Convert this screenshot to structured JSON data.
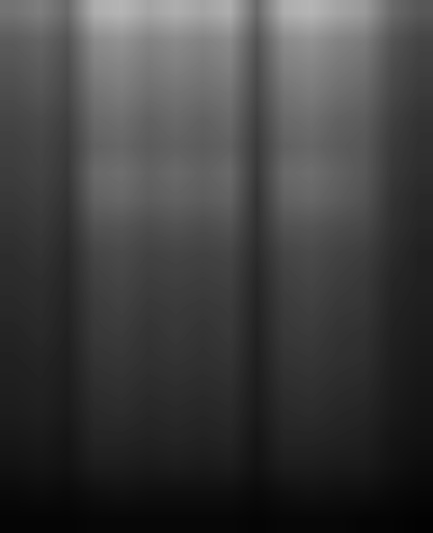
{
  "chart_data": {
    "type": "heatmap",
    "tick_labels": false,
    "color_range": [
      0,
      1
    ],
    "cells": [
      [
        0.45,
        0.49,
        0.41,
        0.68,
        0.71,
        0.64,
        0.68,
        0.64,
        0.68,
        0.41,
        0.68,
        0.71,
        0.64,
        0.6,
        0.41,
        0.34
      ],
      [
        0.36,
        0.39,
        0.33,
        0.54,
        0.57,
        0.51,
        0.54,
        0.51,
        0.54,
        0.33,
        0.54,
        0.57,
        0.51,
        0.48,
        0.33,
        0.27
      ],
      [
        0.33,
        0.36,
        0.3,
        0.5,
        0.52,
        0.47,
        0.5,
        0.47,
        0.5,
        0.3,
        0.5,
        0.52,
        0.47,
        0.44,
        0.3,
        0.25
      ],
      [
        0.3,
        0.33,
        0.28,
        0.45,
        0.48,
        0.43,
        0.45,
        0.43,
        0.45,
        0.28,
        0.45,
        0.48,
        0.43,
        0.4,
        0.28,
        0.23
      ],
      [
        0.27,
        0.29,
        0.25,
        0.41,
        0.43,
        0.38,
        0.41,
        0.38,
        0.41,
        0.25,
        0.41,
        0.43,
        0.38,
        0.36,
        0.25,
        0.2
      ],
      [
        0.25,
        0.27,
        0.23,
        0.38,
        0.4,
        0.36,
        0.38,
        0.36,
        0.38,
        0.23,
        0.38,
        0.4,
        0.36,
        0.34,
        0.23,
        0.19
      ],
      [
        0.24,
        0.26,
        0.22,
        0.41,
        0.43,
        0.38,
        0.41,
        0.38,
        0.41,
        0.22,
        0.41,
        0.43,
        0.38,
        0.34,
        0.22,
        0.18
      ],
      [
        0.22,
        0.24,
        0.2,
        0.38,
        0.4,
        0.36,
        0.38,
        0.36,
        0.38,
        0.2,
        0.38,
        0.4,
        0.36,
        0.32,
        0.2,
        0.16
      ],
      [
        0.2,
        0.22,
        0.18,
        0.32,
        0.33,
        0.3,
        0.32,
        0.3,
        0.32,
        0.19,
        0.32,
        0.33,
        0.3,
        0.28,
        0.19,
        0.15
      ],
      [
        0.18,
        0.2,
        0.16,
        0.27,
        0.29,
        0.26,
        0.27,
        0.26,
        0.27,
        0.17,
        0.27,
        0.29,
        0.26,
        0.24,
        0.17,
        0.13
      ],
      [
        0.17,
        0.18,
        0.15,
        0.25,
        0.27,
        0.24,
        0.25,
        0.24,
        0.25,
        0.15,
        0.25,
        0.27,
        0.24,
        0.22,
        0.15,
        0.13
      ],
      [
        0.16,
        0.17,
        0.14,
        0.23,
        0.25,
        0.22,
        0.23,
        0.22,
        0.23,
        0.14,
        0.23,
        0.25,
        0.22,
        0.21,
        0.14,
        0.12
      ],
      [
        0.14,
        0.16,
        0.13,
        0.22,
        0.23,
        0.2,
        0.22,
        0.2,
        0.22,
        0.13,
        0.22,
        0.23,
        0.2,
        0.19,
        0.13,
        0.11
      ],
      [
        0.13,
        0.14,
        0.12,
        0.2,
        0.21,
        0.19,
        0.2,
        0.19,
        0.2,
        0.12,
        0.2,
        0.21,
        0.19,
        0.18,
        0.12,
        0.1
      ],
      [
        0.12,
        0.13,
        0.11,
        0.18,
        0.19,
        0.17,
        0.18,
        0.17,
        0.18,
        0.11,
        0.18,
        0.19,
        0.17,
        0.16,
        0.11,
        0.09
      ],
      [
        0.11,
        0.12,
        0.1,
        0.16,
        0.17,
        0.15,
        0.16,
        0.15,
        0.16,
        0.1,
        0.16,
        0.17,
        0.15,
        0.14,
        0.1,
        0.08
      ],
      [
        0.09,
        0.1,
        0.08,
        0.14,
        0.14,
        0.13,
        0.14,
        0.13,
        0.14,
        0.08,
        0.14,
        0.14,
        0.13,
        0.12,
        0.08,
        0.07
      ],
      [
        0.07,
        0.08,
        0.07,
        0.11,
        0.11,
        0.1,
        0.11,
        0.1,
        0.11,
        0.07,
        0.11,
        0.11,
        0.1,
        0.1,
        0.07,
        0.05
      ],
      [
        0.04,
        0.05,
        0.04,
        0.06,
        0.07,
        0.06,
        0.06,
        0.06,
        0.06,
        0.04,
        0.06,
        0.07,
        0.06,
        0.06,
        0.04,
        0.03
      ],
      [
        0.02,
        0.02,
        0.02,
        0.03,
        0.03,
        0.03,
        0.03,
        0.03,
        0.03,
        0.02,
        0.03,
        0.03,
        0.03,
        0.02,
        0.02,
        0.01
      ]
    ]
  }
}
